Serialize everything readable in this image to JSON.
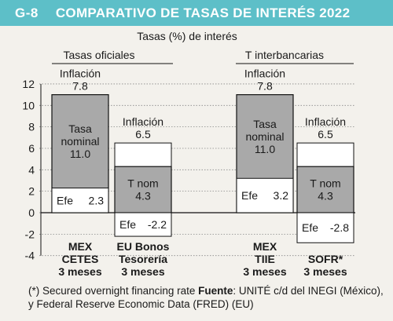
{
  "header": {
    "code": "G-8",
    "title": "COMPARATIVO DE TASAS DE INTERÉS 2022",
    "background": "#5dbfc8"
  },
  "footnote": {
    "prefix": "(*) Secured overnight financing rate",
    "source_label": "Fuente",
    "source_text": ": UNITÉ c/d del INEGI (México), y Federal Reserve Economic Data (FRED) (EU)"
  },
  "chart_data": {
    "type": "bar",
    "title": "Tasas (%) de interés",
    "ylim": [
      -4,
      12
    ],
    "yticks": [
      12,
      10,
      8,
      6,
      4,
      2,
      0,
      -2,
      -4
    ],
    "groups": [
      {
        "label": "Tasas oficiales",
        "categories": [
          0,
          1
        ]
      },
      {
        "label": "T interbancarias",
        "categories": [
          2,
          3
        ]
      }
    ],
    "categories": [
      {
        "lines": [
          "MEX",
          "CETES",
          "3 meses"
        ],
        "inflation_label": "Inflación",
        "inflation": 7.8,
        "nominal_label_lines": [
          "Tasa",
          "nominal"
        ],
        "nominal": 11.0,
        "effective_label": "Efe",
        "effective": 2.3,
        "nominal_display": "11.0",
        "inflation_display": "7.8",
        "effective_display": "2.3"
      },
      {
        "lines": [
          "EU Bonos",
          "Tesorería",
          "3 meses"
        ],
        "inflation_label": "Inflación",
        "inflation": 6.5,
        "nominal_label_lines": [
          "T nom"
        ],
        "nominal": 4.3,
        "effective_label": "Efe",
        "effective": -2.2,
        "nominal_display": "4.3",
        "inflation_display": "6.5",
        "effective_display": "-2.2"
      },
      {
        "lines": [
          "MEX",
          "TIIE",
          "3 meses"
        ],
        "inflation_label": "Inflación",
        "inflation": 7.8,
        "nominal_label_lines": [
          "Tasa",
          "nominal"
        ],
        "nominal": 11.0,
        "effective_label": "Efe",
        "effective": 3.2,
        "nominal_display": "11.0",
        "inflation_display": "7.8",
        "effective_display": "3.2"
      },
      {
        "lines": [
          "SOFR*",
          "3 meses"
        ],
        "inflation_label": "Inflación",
        "inflation": 6.5,
        "nominal_label_lines": [
          "T nom"
        ],
        "nominal": 4.3,
        "effective_label": "Efe",
        "effective": -2.8,
        "nominal_display": "4.3",
        "inflation_display": "6.5",
        "effective_display": "-2.8"
      }
    ],
    "colors": {
      "nominal_fill": "#a9a9a9",
      "inflation_fill": "#ffffff",
      "outline": "#111111",
      "grid": "#888888"
    }
  }
}
